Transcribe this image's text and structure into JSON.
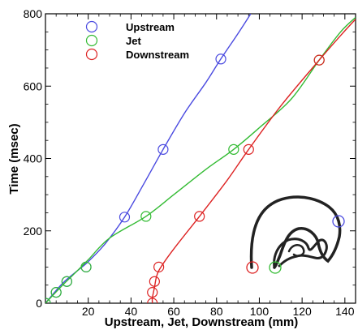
{
  "chart_data": {
    "type": "line",
    "title": "",
    "xlabel": "Upstream, Jet, Downstream (mm)",
    "ylabel": "Time (msec)",
    "xlim": [
      0,
      145
    ],
    "ylim": [
      0,
      800
    ],
    "x_ticks": [
      "20",
      "40",
      "60",
      "80",
      "100",
      "120",
      "140"
    ],
    "y_ticks": [
      "0",
      "200",
      "400",
      "600",
      "800"
    ],
    "x_tick_values": [
      20,
      40,
      60,
      80,
      100,
      120,
      140
    ],
    "y_tick_values": [
      0,
      200,
      400,
      600,
      800
    ],
    "grid": false,
    "legend_position": "top-left",
    "series": [
      {
        "name": "Upstream",
        "color": "#4a4ae0",
        "curve": [
          [
            0,
            0
          ],
          [
            8,
            55
          ],
          [
            15,
            90
          ],
          [
            20,
            115
          ],
          [
            28,
            165
          ],
          [
            37,
            238
          ],
          [
            46,
            330
          ],
          [
            55,
            425
          ],
          [
            65,
            525
          ],
          [
            75,
            610
          ],
          [
            82,
            675
          ],
          [
            90,
            745
          ],
          [
            96,
            800
          ]
        ],
        "markers": [
          [
            0,
            0
          ],
          [
            5,
            30
          ],
          [
            10,
            60
          ],
          [
            19,
            100
          ],
          [
            37,
            238
          ],
          [
            55,
            425
          ],
          [
            82,
            675
          ]
        ]
      },
      {
        "name": "Jet",
        "color": "#33bb33",
        "curve": [
          [
            0,
            0
          ],
          [
            8,
            50
          ],
          [
            15,
            90
          ],
          [
            20,
            120
          ],
          [
            30,
            180
          ],
          [
            47,
            240
          ],
          [
            60,
            300
          ],
          [
            75,
            370
          ],
          [
            88,
            425
          ],
          [
            100,
            485
          ],
          [
            115,
            565
          ],
          [
            128,
            672
          ],
          [
            138,
            750
          ],
          [
            145,
            790
          ]
        ],
        "markers": [
          [
            0,
            0
          ],
          [
            5,
            30
          ],
          [
            10,
            60
          ],
          [
            19,
            100
          ],
          [
            47,
            240
          ],
          [
            88,
            425
          ],
          [
            128,
            672
          ]
        ]
      },
      {
        "name": "Downstream",
        "color": "#dd2222",
        "curve": [
          [
            50,
            0
          ],
          [
            50,
            15
          ],
          [
            51,
            45
          ],
          [
            52,
            75
          ],
          [
            54,
            100
          ],
          [
            60,
            150
          ],
          [
            72,
            240
          ],
          [
            85,
            340
          ],
          [
            95,
            425
          ],
          [
            110,
            545
          ],
          [
            128,
            672
          ],
          [
            138,
            740
          ],
          [
            145,
            785
          ]
        ],
        "markers": [
          [
            50,
            0
          ],
          [
            50,
            30
          ],
          [
            51,
            60
          ],
          [
            53,
            100
          ],
          [
            72,
            240
          ],
          [
            95,
            425
          ],
          [
            128,
            672
          ]
        ]
      }
    ]
  },
  "inset": {
    "icon": "vortex-photo-icon",
    "color": "#222222",
    "markers": [
      {
        "color": "#4a4ae0"
      },
      {
        "color": "#dd2222"
      },
      {
        "color": "#33bb33"
      }
    ]
  }
}
